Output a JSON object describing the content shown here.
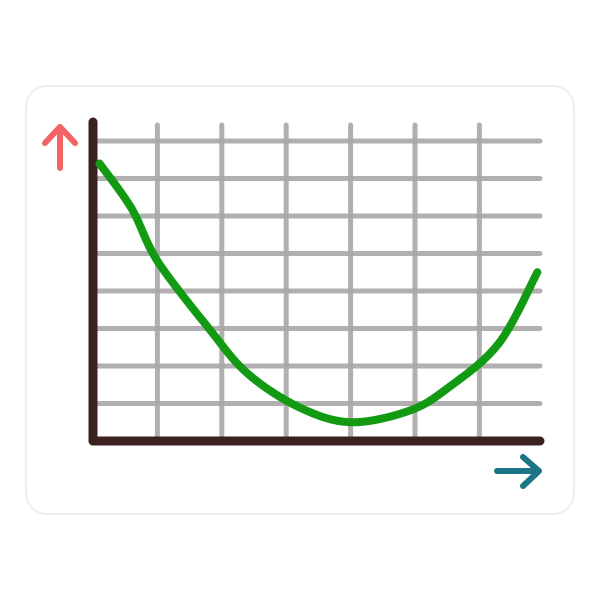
{
  "chart_data": {
    "type": "line",
    "title": "",
    "xlabel": "",
    "ylabel": "",
    "xlim": [
      0,
      7
    ],
    "ylim": [
      0,
      8
    ],
    "grid": true,
    "x_gridlines": [
      1,
      2,
      3,
      4,
      5,
      6
    ],
    "y_gridlines": [
      1,
      2,
      3,
      4,
      5,
      6,
      7,
      8
    ],
    "series": [
      {
        "x": [
          0.1,
          0.6,
          1.0,
          1.8,
          2.4,
          3.2,
          4.0,
          4.9,
          5.5,
          6.3,
          6.9
        ],
        "y": [
          7.4,
          6.2,
          4.8,
          3.0,
          1.8,
          0.9,
          0.5,
          0.8,
          1.4,
          2.6,
          4.5
        ]
      }
    ],
    "colors": {
      "curve": "#129a12",
      "axes": "#3b2220",
      "grid": "#a9a7a8",
      "y_arrow": "#f46464",
      "x_arrow": "#1b7587"
    }
  }
}
